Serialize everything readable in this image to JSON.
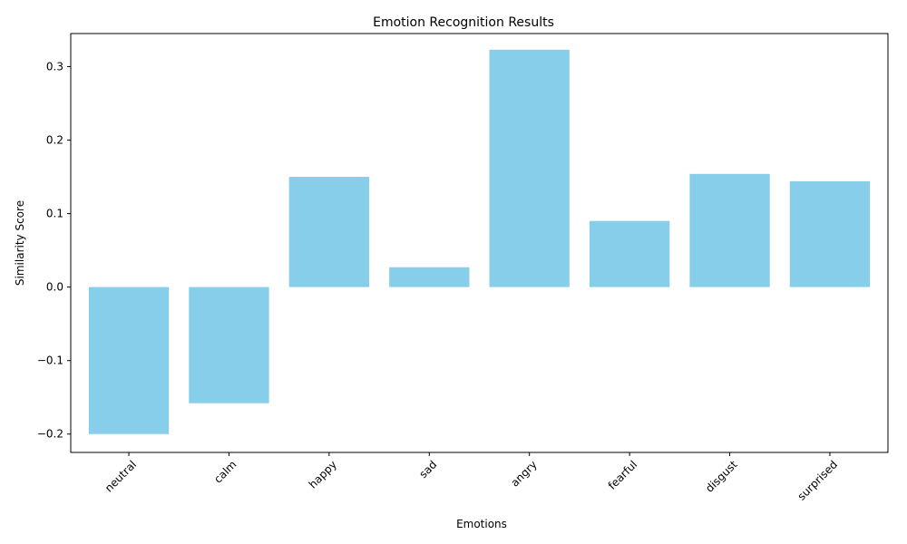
{
  "chart_data": {
    "type": "bar",
    "title": "Emotion Recognition Results",
    "xlabel": "Emotions",
    "ylabel": "Similarity Score",
    "categories": [
      "neutral",
      "calm",
      "happy",
      "sad",
      "angry",
      "fearful",
      "disgust",
      "surprised"
    ],
    "values": [
      -0.2,
      -0.158,
      0.15,
      0.027,
      0.323,
      0.09,
      0.154,
      0.144
    ],
    "ylim": [
      -0.225,
      0.345
    ],
    "yticks": [
      -0.2,
      -0.1,
      0.0,
      0.1,
      0.2,
      0.3
    ],
    "ytick_labels": [
      "−0.2",
      "−0.1",
      "0.0",
      "0.1",
      "0.2",
      "0.3"
    ],
    "bar_color": "#87ceeb",
    "grid": false,
    "xtick_rotation": 45
  }
}
